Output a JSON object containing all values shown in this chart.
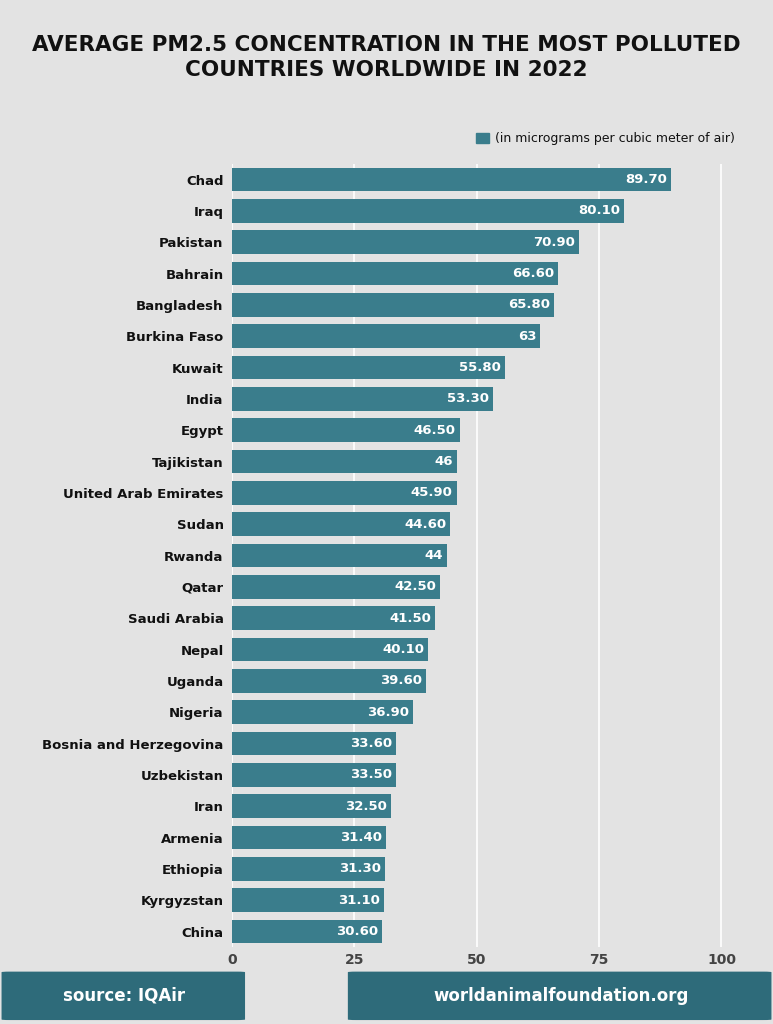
{
  "title": "AVERAGE PM2.5 CONCENTRATION IN THE MOST POLLUTED\nCOUNTRIES WORLDWIDE IN 2022",
  "legend_label": "(in micrograms per cubic meter of air)",
  "countries": [
    "Chad",
    "Iraq",
    "Pakistan",
    "Bahrain",
    "Bangladesh",
    "Burkina Faso",
    "Kuwait",
    "India",
    "Egypt",
    "Tajikistan",
    "United Arab Emirates",
    "Sudan",
    "Rwanda",
    "Qatar",
    "Saudi Arabia",
    "Nepal",
    "Uganda",
    "Nigeria",
    "Bosnia and Herzegovina",
    "Uzbekistan",
    "Iran",
    "Armenia",
    "Ethiopia",
    "Kyrgyzstan",
    "China"
  ],
  "values": [
    89.7,
    80.1,
    70.9,
    66.6,
    65.8,
    63.0,
    55.8,
    53.3,
    46.5,
    46.0,
    45.9,
    44.6,
    44.0,
    42.5,
    41.5,
    40.1,
    39.6,
    36.9,
    33.6,
    33.5,
    32.5,
    31.4,
    31.3,
    31.1,
    30.6
  ],
  "value_labels": [
    "89.70",
    "80.10",
    "70.90",
    "66.60",
    "65.80",
    "63",
    "55.80",
    "53.30",
    "46.50",
    "46",
    "45.90",
    "44.60",
    "44",
    "42.50",
    "41.50",
    "40.10",
    "39.60",
    "36.90",
    "33.60",
    "33.50",
    "32.50",
    "31.40",
    "31.30",
    "31.10",
    "30.60"
  ],
  "bar_color": "#3a7d8c",
  "bg_color": "#e3e3e3",
  "title_color": "#111111",
  "label_color": "#111111",
  "value_color": "#ffffff",
  "footer_bg": "#2e6b7a",
  "footer_text_color": "#ffffff",
  "xlim": [
    0,
    105
  ],
  "xticks": [
    0,
    25,
    50,
    75,
    100
  ]
}
